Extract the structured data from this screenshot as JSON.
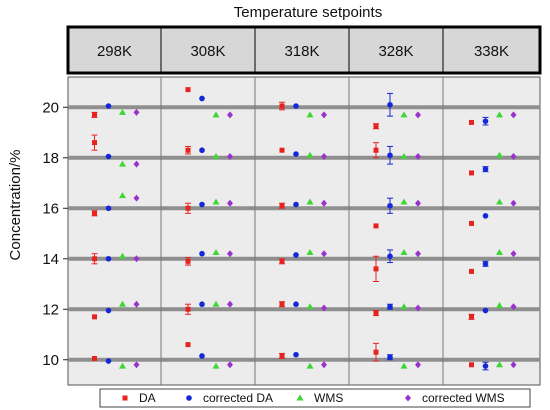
{
  "chart_data": {
    "type": "scatter",
    "title": "Temperature setpoints",
    "ylabel": "Concentration/%",
    "xlabel": "",
    "ylim": [
      9,
      21.2
    ],
    "yticks": [
      10,
      12,
      14,
      16,
      18,
      20
    ],
    "reference_levels": [
      10,
      12,
      14,
      16,
      18,
      20
    ],
    "grid": true,
    "legend_position": "bottom",
    "panels": [
      "298K",
      "308K",
      "318K",
      "328K",
      "338K"
    ],
    "series": [
      {
        "name": "DA",
        "color": "#e8231f",
        "marker": "square",
        "values": [
          [
            19.7,
            18.6,
            15.8,
            14.0,
            11.7,
            10.05
          ],
          [
            20.7,
            18.3,
            16.0,
            13.9,
            12.0,
            10.6
          ],
          [
            20.05,
            18.3,
            16.1,
            13.9,
            12.2,
            10.15
          ],
          [
            19.25,
            18.3,
            15.3,
            13.6,
            11.85,
            10.3
          ],
          [
            19.4,
            17.4,
            15.4,
            13.5,
            11.7,
            9.8
          ]
        ],
        "errors": [
          [
            0.1,
            0.3,
            0.1,
            0.2,
            0.05,
            0.05
          ],
          [
            0.05,
            0.15,
            0.2,
            0.15,
            0.2,
            0.05
          ],
          [
            0.15,
            0.05,
            0.1,
            0.1,
            0.1,
            0.1
          ],
          [
            0.1,
            0.3,
            0.05,
            0.5,
            0.1,
            0.35
          ],
          [
            0.05,
            0.05,
            0.05,
            0.05,
            0.1,
            0.05
          ]
        ]
      },
      {
        "name": "corrected DA",
        "color": "#1428d8",
        "marker": "circle",
        "values": [
          [
            20.05,
            18.05,
            16.0,
            14.0,
            11.95,
            9.95
          ],
          [
            20.35,
            18.3,
            16.15,
            14.2,
            12.2,
            10.15
          ],
          [
            20.05,
            18.15,
            16.15,
            14.15,
            12.2,
            10.2
          ],
          [
            20.1,
            18.1,
            16.1,
            14.1,
            12.1,
            10.1
          ],
          [
            19.45,
            17.55,
            15.7,
            13.8,
            11.95,
            9.75
          ]
        ],
        "errors": [
          [
            0.05,
            0.05,
            0.05,
            0.05,
            0.05,
            0.05
          ],
          [
            0.05,
            0.05,
            0.05,
            0.05,
            0.05,
            0.05
          ],
          [
            0.05,
            0.05,
            0.05,
            0.05,
            0.05,
            0.05
          ],
          [
            0.45,
            0.35,
            0.3,
            0.25,
            0.1,
            0.1
          ],
          [
            0.15,
            0.1,
            0.05,
            0.1,
            0.05,
            0.15
          ]
        ]
      },
      {
        "name": "WMS",
        "color": "#3fd635",
        "marker": "triangle",
        "values": [
          [
            19.8,
            17.75,
            16.5,
            14.1,
            12.2,
            9.75
          ],
          [
            19.7,
            18.05,
            16.25,
            14.25,
            12.2,
            9.75
          ],
          [
            19.7,
            18.1,
            16.25,
            14.25,
            12.1,
            9.75
          ],
          [
            19.7,
            18.05,
            16.25,
            14.25,
            12.1,
            9.75
          ],
          [
            19.7,
            18.1,
            16.25,
            14.25,
            12.15,
            9.8
          ]
        ],
        "errors": []
      },
      {
        "name": "corrected WMS",
        "color": "#9933cc",
        "marker": "diamond",
        "values": [
          [
            19.8,
            17.75,
            16.4,
            14.0,
            12.2,
            9.8
          ],
          [
            19.7,
            18.05,
            16.2,
            14.2,
            12.2,
            9.8
          ],
          [
            19.7,
            18.05,
            16.2,
            14.2,
            12.05,
            9.8
          ],
          [
            19.7,
            18.05,
            16.2,
            14.2,
            12.05,
            9.8
          ],
          [
            19.7,
            18.05,
            16.2,
            14.2,
            12.1,
            9.8
          ]
        ],
        "errors": []
      }
    ]
  }
}
